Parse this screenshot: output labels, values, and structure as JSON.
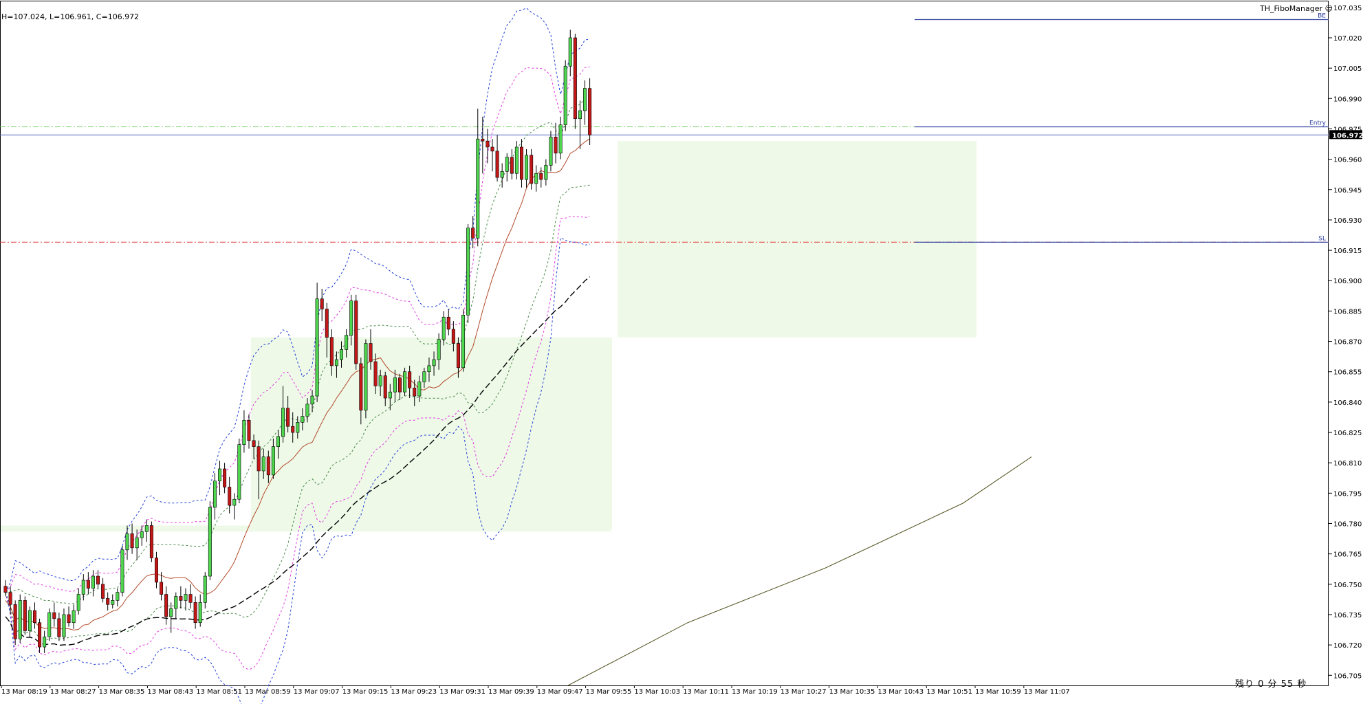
{
  "header": {
    "ohlc_text": "H=107.024,  L=106.961,  C=106.972"
  },
  "indicator": {
    "name": "TH_FiboManager",
    "icon": "smiley-icon"
  },
  "status": {
    "countdown": "残り 0 分 55 秒"
  },
  "colors": {
    "bull": "#4fd64f",
    "bear": "#c41818",
    "bb_outer": "#1f3fd6",
    "bb_mid": "#e03ce0",
    "bb_inner": "#4a8a4a",
    "ma_fast": "#b34a2a",
    "ma_slow": "#000000",
    "ma_long": "#5a5a2a",
    "zone": "#eef9e8",
    "entry": "#2c3fa0",
    "tp_dash": "#6cc85a",
    "sl_dash": "#e03a3a"
  },
  "chart_data": {
    "type": "candlestick",
    "ylim": [
      106.7,
      107.038
    ],
    "y_ticks": [
      "107.035",
      "107.020",
      "107.005",
      "106.990",
      "106.975",
      "106.960",
      "106.945",
      "106.930",
      "106.915",
      "106.900",
      "106.885",
      "106.870",
      "106.855",
      "106.840",
      "106.825",
      "106.810",
      "106.795",
      "106.780",
      "106.765",
      "106.750",
      "106.735",
      "106.720",
      "106.705"
    ],
    "x_labels": [
      "13 Mar 08:19",
      "13 Mar 08:27",
      "13 Mar 08:35",
      "13 Mar 08:43",
      "13 Mar 08:51",
      "13 Mar 08:59",
      "13 Mar 09:07",
      "13 Mar 09:15",
      "13 Mar 09:23",
      "13 Mar 09:31",
      "13 Mar 09:39",
      "13 Mar 09:47",
      "13 Mar 09:55",
      "13 Mar 10:03",
      "13 Mar 10:11",
      "13 Mar 10:19",
      "13 Mar 10:27",
      "13 Mar 10:35",
      "13 Mar 10:43",
      "13 Mar 10:51",
      "13 Mar 10:59",
      "13 Mar 11:07"
    ],
    "current_price": "106.972",
    "levels": [
      {
        "label": "BE",
        "value": 107.029
      },
      {
        "label": "Entry",
        "value": 106.976
      },
      {
        "label": "SL",
        "value": 106.919
      }
    ],
    "candles": [
      [
        106.749,
        106.752,
        106.744,
        106.746
      ],
      [
        106.746,
        106.749,
        106.735,
        106.74
      ],
      [
        106.74,
        106.742,
        106.72,
        106.723
      ],
      [
        106.723,
        106.745,
        106.721,
        106.742
      ],
      [
        106.742,
        106.744,
        106.725,
        106.727
      ],
      [
        106.727,
        106.739,
        106.724,
        106.737
      ],
      [
        106.737,
        106.741,
        106.728,
        106.731
      ],
      [
        106.731,
        106.733,
        106.716,
        106.719
      ],
      [
        106.719,
        106.727,
        106.716,
        106.724
      ],
      [
        106.724,
        106.738,
        106.722,
        106.736
      ],
      [
        106.736,
        106.741,
        106.729,
        106.733
      ],
      [
        106.733,
        106.736,
        106.722,
        106.724
      ],
      [
        106.724,
        106.738,
        106.722,
        106.735
      ],
      [
        106.735,
        106.739,
        106.729,
        106.731
      ],
      [
        106.731,
        106.74,
        106.728,
        106.737
      ],
      [
        106.737,
        106.748,
        106.735,
        106.745
      ],
      [
        106.745,
        106.755,
        106.742,
        106.752
      ],
      [
        106.752,
        106.756,
        106.745,
        106.748
      ],
      [
        106.748,
        106.757,
        106.744,
        106.754
      ],
      [
        106.754,
        106.757,
        106.748,
        106.75
      ],
      [
        106.75,
        106.753,
        106.741,
        106.743
      ],
      [
        106.743,
        106.746,
        106.737,
        106.74
      ],
      [
        106.74,
        106.745,
        106.738,
        106.742
      ],
      [
        106.742,
        106.748,
        106.739,
        106.746
      ],
      [
        106.746,
        106.769,
        106.744,
        106.767
      ],
      [
        106.767,
        106.779,
        106.762,
        106.775
      ],
      [
        106.775,
        106.78,
        106.765,
        106.768
      ],
      [
        106.768,
        106.777,
        106.762,
        106.773
      ],
      [
        106.773,
        106.779,
        106.769,
        106.776
      ],
      [
        106.776,
        106.782,
        106.771,
        106.779
      ],
      [
        106.779,
        106.781,
        106.761,
        106.763
      ],
      [
        106.763,
        106.766,
        106.748,
        106.751
      ],
      [
        106.751,
        106.756,
        106.742,
        106.745
      ],
      [
        106.745,
        106.749,
        106.73,
        106.734
      ],
      [
        106.734,
        106.741,
        106.726,
        106.738
      ],
      [
        106.738,
        106.746,
        106.733,
        106.744
      ],
      [
        106.744,
        106.749,
        106.738,
        106.742
      ],
      [
        106.742,
        106.748,
        106.737,
        106.745
      ],
      [
        106.745,
        106.75,
        106.738,
        106.741
      ],
      [
        106.741,
        106.744,
        106.728,
        106.731
      ],
      [
        106.731,
        106.745,
        106.729,
        106.741
      ],
      [
        106.741,
        106.756,
        106.738,
        106.754
      ],
      [
        106.754,
        106.791,
        106.752,
        106.788
      ],
      [
        106.788,
        106.805,
        106.782,
        106.801
      ],
      [
        106.801,
        106.811,
        106.794,
        106.807
      ],
      [
        106.807,
        106.81,
        106.795,
        106.798
      ],
      [
        106.798,
        106.803,
        106.785,
        106.789
      ],
      [
        106.789,
        106.795,
        106.782,
        106.792
      ],
      [
        106.792,
        106.822,
        106.79,
        106.819
      ],
      [
        106.819,
        106.836,
        106.815,
        106.831
      ],
      [
        106.831,
        106.834,
        106.817,
        106.821
      ],
      [
        106.821,
        106.824,
        106.812,
        106.818
      ],
      [
        106.818,
        106.821,
        106.792,
        106.806
      ],
      [
        106.806,
        106.817,
        106.802,
        106.813
      ],
      [
        106.813,
        106.816,
        106.8,
        106.804
      ],
      [
        106.804,
        106.822,
        106.802,
        106.818
      ],
      [
        106.818,
        106.826,
        106.812,
        106.823
      ],
      [
        106.823,
        106.848,
        106.82,
        106.837
      ],
      [
        106.837,
        106.843,
        106.825,
        106.828
      ],
      [
        106.828,
        106.835,
        106.82,
        106.825
      ],
      [
        106.825,
        106.833,
        106.822,
        106.83
      ],
      [
        106.83,
        106.837,
        106.826,
        106.833
      ],
      [
        106.833,
        106.842,
        106.83,
        106.839
      ],
      [
        106.839,
        106.846,
        106.835,
        106.843
      ],
      [
        106.843,
        106.899,
        106.84,
        106.891
      ],
      [
        106.891,
        106.896,
        106.88,
        106.886
      ],
      [
        106.886,
        106.889,
        106.862,
        106.872
      ],
      [
        106.872,
        106.876,
        106.853,
        106.858
      ],
      [
        106.858,
        106.865,
        106.852,
        106.861
      ],
      [
        106.861,
        106.87,
        106.857,
        106.866
      ],
      [
        106.866,
        106.876,
        106.862,
        106.873
      ],
      [
        106.873,
        106.893,
        106.868,
        106.89
      ],
      [
        106.89,
        106.893,
        106.856,
        106.859
      ],
      [
        106.859,
        106.862,
        106.829,
        106.836
      ],
      [
        106.836,
        106.871,
        106.832,
        106.869
      ],
      [
        106.869,
        106.876,
        106.856,
        106.86
      ],
      [
        106.86,
        106.864,
        106.844,
        106.848
      ],
      [
        106.848,
        106.856,
        106.843,
        106.853
      ],
      [
        106.853,
        106.855,
        106.838,
        106.842
      ],
      [
        106.842,
        106.849,
        106.836,
        106.845
      ],
      [
        106.845,
        106.856,
        106.84,
        106.852
      ],
      [
        106.852,
        106.854,
        106.841,
        106.845
      ],
      [
        106.845,
        106.857,
        106.843,
        106.855
      ],
      [
        106.855,
        106.858,
        106.842,
        106.847
      ],
      [
        106.847,
        106.851,
        106.838,
        106.843
      ],
      [
        106.843,
        106.853,
        106.84,
        106.85
      ],
      [
        106.85,
        106.857,
        106.847,
        106.855
      ],
      [
        106.855,
        106.862,
        106.85,
        106.858
      ],
      [
        106.858,
        106.865,
        106.853,
        106.861
      ],
      [
        106.861,
        106.874,
        106.856,
        106.871
      ],
      [
        106.871,
        106.885,
        106.868,
        106.882
      ],
      [
        106.882,
        106.886,
        106.873,
        106.876
      ],
      [
        106.876,
        106.88,
        106.865,
        106.869
      ],
      [
        106.869,
        106.872,
        106.852,
        106.857
      ],
      [
        106.857,
        106.886,
        106.855,
        106.883
      ],
      [
        106.883,
        106.928,
        106.879,
        106.926
      ],
      [
        106.926,
        106.932,
        106.916,
        106.921
      ],
      [
        106.921,
        106.985,
        106.917,
        106.97
      ],
      [
        106.97,
        106.981,
        106.953,
        106.969
      ],
      [
        106.969,
        106.975,
        106.958,
        106.966
      ],
      [
        106.966,
        106.97,
        106.954,
        106.964
      ],
      [
        106.964,
        106.972,
        106.949,
        106.951
      ],
      [
        106.951,
        106.958,
        106.946,
        106.954
      ],
      [
        106.954,
        106.963,
        106.949,
        106.961
      ],
      [
        106.961,
        106.965,
        106.95,
        106.953
      ],
      [
        106.953,
        106.969,
        106.95,
        106.966
      ],
      [
        106.966,
        106.97,
        106.946,
        106.95
      ],
      [
        106.95,
        106.965,
        106.946,
        106.962
      ],
      [
        106.962,
        106.965,
        106.945,
        106.948
      ],
      [
        106.948,
        106.957,
        106.944,
        106.953
      ],
      [
        106.953,
        106.956,
        106.946,
        106.95
      ],
      [
        106.95,
        106.96,
        106.947,
        106.957
      ],
      [
        106.957,
        106.974,
        106.954,
        106.971
      ],
      [
        106.971,
        106.978,
        106.958,
        106.963
      ],
      [
        106.963,
        106.981,
        106.96,
        106.977
      ],
      [
        106.977,
        107.009,
        106.974,
        107.006
      ],
      [
        107.006,
        107.024,
        107.001,
        107.02
      ],
      [
        107.02,
        107.022,
        106.975,
        106.98
      ],
      [
        106.98,
        106.989,
        106.965,
        106.984
      ],
      [
        106.984,
        106.999,
        106.977,
        106.995
      ],
      [
        106.995,
        107.0,
        106.967,
        106.972
      ]
    ]
  }
}
